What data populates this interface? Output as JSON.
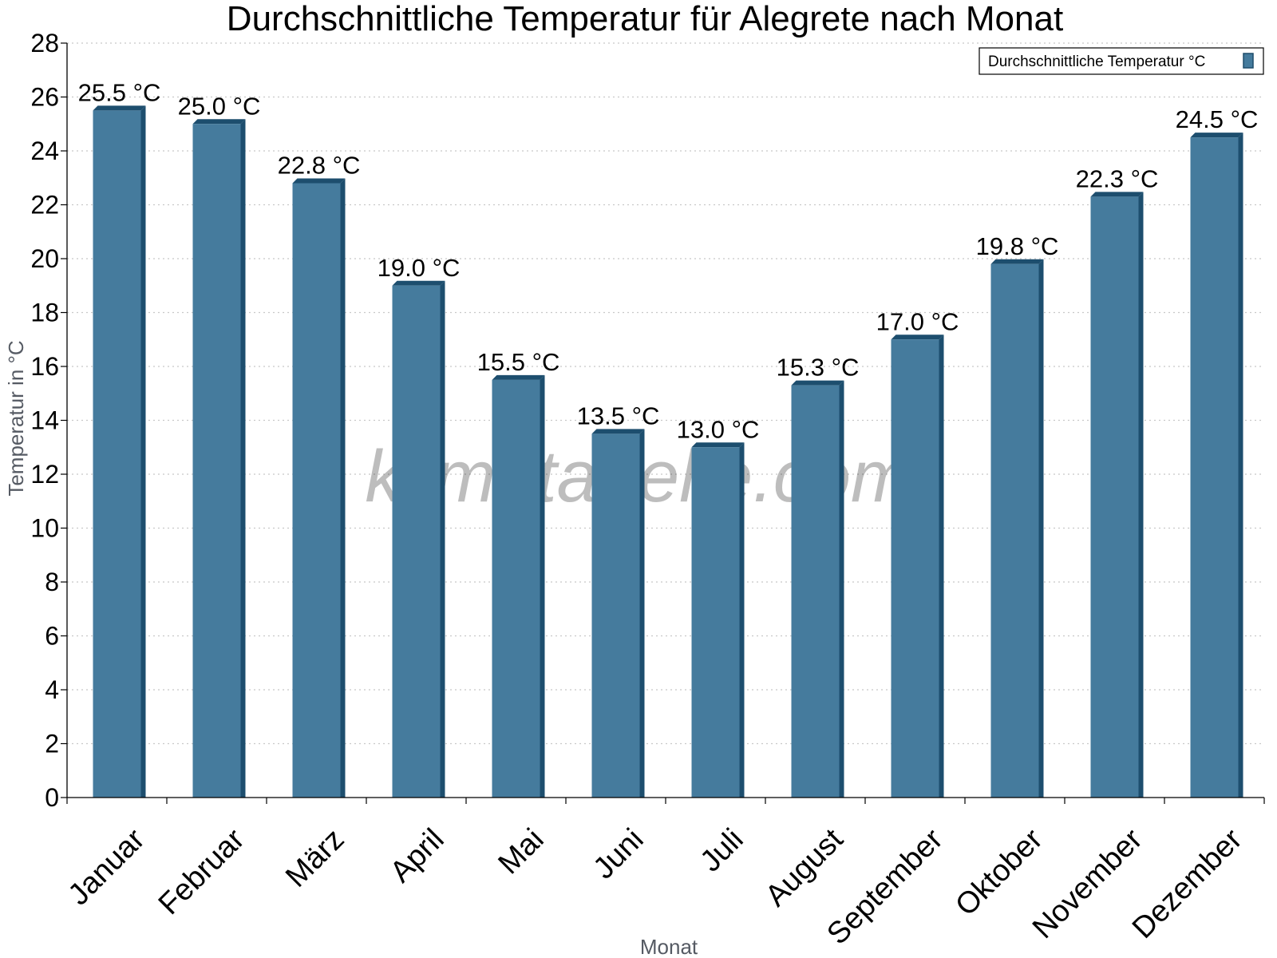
{
  "chart_data": {
    "type": "bar",
    "title": "Durchschnittliche Temperatur für Alegrete nach Monat",
    "xlabel": "Monat",
    "ylabel": "Temperatur in °C",
    "ylim": [
      0,
      28
    ],
    "yticks": [
      0,
      2,
      4,
      6,
      8,
      10,
      12,
      14,
      16,
      18,
      20,
      22,
      24,
      26,
      28
    ],
    "grid": "horizontal dotted",
    "legend_position": "top-right",
    "categories": [
      "Januar",
      "Februar",
      "März",
      "April",
      "Mai",
      "Juni",
      "Juli",
      "August",
      "September",
      "Oktober",
      "November",
      "Dezember"
    ],
    "series": [
      {
        "name": "Durchschnittliche Temperatur °C",
        "color": "#457b9d",
        "values": [
          25.5,
          25.0,
          22.8,
          19.0,
          15.5,
          13.5,
          13.0,
          15.3,
          17.0,
          19.8,
          22.3,
          24.5
        ],
        "labels": [
          "25.5 °C",
          "25.0 °C",
          "22.8 °C",
          "19.0 °C",
          "15.5 °C",
          "13.5 °C",
          "13.0 °C",
          "15.3 °C",
          "17.0 °C",
          "19.8 °C",
          "22.3 °C",
          "24.5 °C"
        ]
      }
    ],
    "watermark": "klimatabelle.com"
  }
}
